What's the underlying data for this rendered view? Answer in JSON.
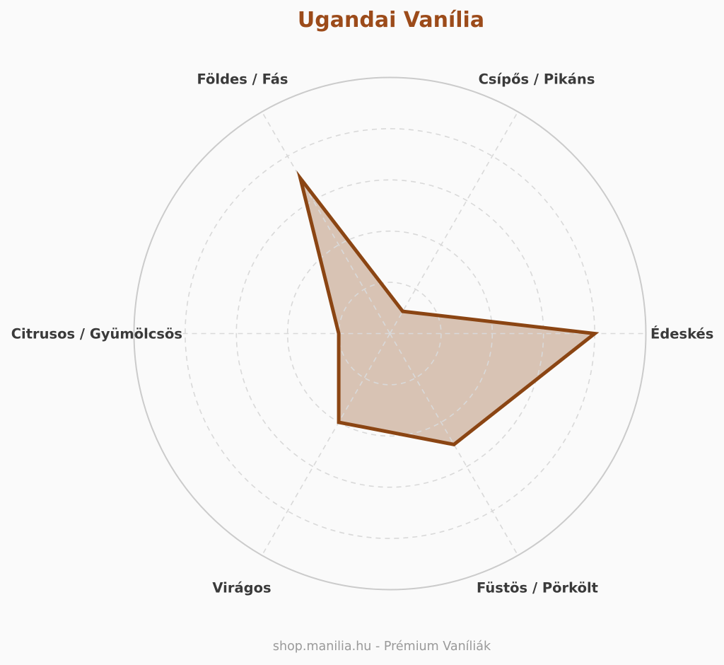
{
  "title": "Ugandai Vanília",
  "footer": "shop.manilia.hu - Prémium Vaníliák",
  "chart_data": {
    "type": "radar",
    "categories": [
      "Földes / Fás",
      "Csípős / Pikáns",
      "Édeskés",
      "Füstös / Pörkölt",
      "Virágos",
      "Citrusos / Gyümölcsös"
    ],
    "values": [
      7,
      1,
      8,
      5,
      4,
      2
    ],
    "axis_angles_deg": [
      120,
      60,
      0,
      300,
      240,
      180
    ],
    "scale": {
      "min": 0,
      "max": 10,
      "rings": 5
    },
    "grid": {
      "ring_style": "dashed",
      "spoke_style": "dashed",
      "outer_style": "solid",
      "legend": "none"
    },
    "colors": {
      "background": "#fafafa",
      "title": "#9c4b1a",
      "label": "#3a3a3a",
      "footer": "#9a9a9a",
      "grid": "#d9d9d9",
      "outer_circle": "#cbcbcb",
      "series_stroke": "#8b4513",
      "series_fill": "rgba(139,69,19,0.3)"
    }
  }
}
